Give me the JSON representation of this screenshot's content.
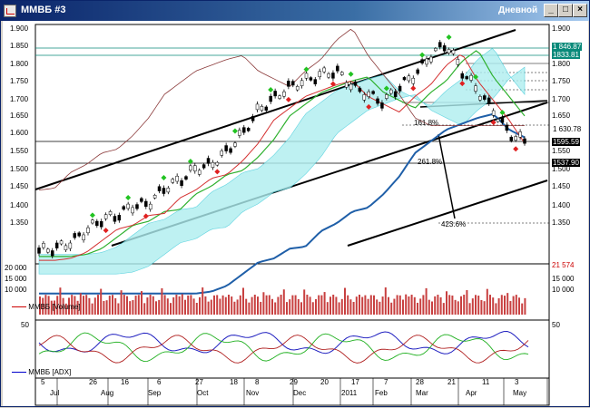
{
  "window": {
    "title": "ММВБ #3",
    "period": "Дневной",
    "buttons": [
      "_",
      "□",
      "×"
    ]
  },
  "price_axis": {
    "ticks": [
      "1.900",
      "1.850",
      "1.800",
      "1.750",
      "1.700",
      "1.650",
      "1.600",
      "1.550",
      "1.500",
      "1.450",
      "1.400",
      "1.350"
    ],
    "right_ticks": [
      "1.900",
      "1.800",
      "1.750",
      "1.700",
      "1.650",
      "1.550",
      "1.500",
      "1.450",
      "1.400",
      "1.350"
    ],
    "markers": [
      {
        "text": "1 846.87",
        "color": "#0a8a7a"
      },
      {
        "text": "1833.81",
        "color": "#0a8a7a"
      },
      {
        "text": "1 630.78",
        "color": "#ffffff"
      },
      {
        "text": "1595.59",
        "color": "#000000"
      },
      {
        "text": "1537.90",
        "color": "#000000"
      }
    ],
    "fib_labels": [
      "161.8%",
      "261.8%",
      "423.6%"
    ]
  },
  "volume_pane": {
    "label": "ММВБ [Volume]",
    "ticks": [
      "20 000",
      "15 000",
      "10 000"
    ],
    "right_ticks": [
      "15 000",
      "10 000"
    ],
    "last_value": "21 574"
  },
  "adx_pane": {
    "label": "ММВБ [ADX]",
    "tick": "50",
    "right_tick": "50"
  },
  "time_axis": {
    "days": [
      "5",
      "26",
      "16",
      "6",
      "27",
      "18",
      "8",
      "29",
      "20",
      "17",
      "7",
      "28",
      "21",
      "11",
      "3"
    ],
    "months": [
      "Jul",
      "Aug",
      "Sep",
      "Oct",
      "Nov",
      "Dec",
      "2011",
      "Feb",
      "Mar",
      "Apr",
      "May"
    ]
  },
  "chart_data": {
    "type": "line",
    "title": "",
    "series": [
      {
        "values": [
          1340,
          1345,
          1360,
          1390,
          1420,
          1430,
          1455,
          1460,
          1500,
          1520,
          1550,
          1560,
          1595,
          1640,
          1700,
          1730,
          1760,
          1775,
          1790,
          1800,
          1760,
          1740,
          1720,
          1760,
          1790,
          1840,
          1870,
          1800,
          1750,
          1700,
          1640,
          1620
        ]
      }
    ],
    "ylim": [
      1320,
      1910
    ]
  }
}
